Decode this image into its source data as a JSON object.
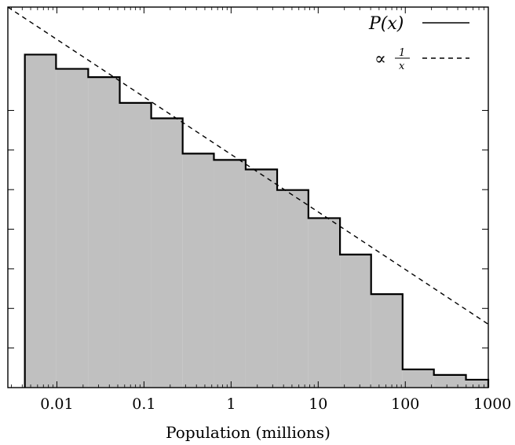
{
  "chart_data": {
    "type": "area",
    "xscale": "log",
    "yscale": "log",
    "xlabel": "Population (millions)",
    "ylabel": "",
    "xlim": [
      0.002736,
      897.5
    ],
    "ylim_decades": [
      0,
      9.61
    ],
    "grid": false,
    "legend_position": "top-right",
    "x_ticks": [
      {
        "value": 0.01,
        "label": "0.01"
      },
      {
        "value": 0.1,
        "label": "0.1"
      },
      {
        "value": 1,
        "label": "1"
      },
      {
        "value": 10,
        "label": "10"
      },
      {
        "value": 100,
        "label": "100"
      },
      {
        "value": 1000,
        "label": "1000"
      }
    ],
    "y_tick_decades": [
      1,
      2,
      3,
      4,
      5,
      6,
      7
    ],
    "series": [
      {
        "name": "P(x)",
        "style": "solid-step",
        "fill": "#c0c0c0",
        "bin_edges": [
          0.00429,
          0.00978,
          0.0229,
          0.0527,
          0.121,
          0.278,
          0.635,
          1.47,
          3.38,
          7.72,
          17.8,
          40.5,
          93.1,
          213,
          497,
          897.5
        ],
        "values_log10": [
          8.41,
          8.05,
          7.84,
          7.19,
          6.8,
          5.91,
          5.75,
          5.51,
          4.99,
          4.28,
          3.36,
          2.36,
          0.46,
          0.32,
          0.2
        ]
      },
      {
        "name": "∝ 1/x",
        "legend_parts": [
          "∝",
          "1",
          "x"
        ],
        "style": "dashed",
        "x": [
          0.002736,
          897.5
        ],
        "values_log10": [
          9.61,
          1.6
        ]
      }
    ]
  }
}
